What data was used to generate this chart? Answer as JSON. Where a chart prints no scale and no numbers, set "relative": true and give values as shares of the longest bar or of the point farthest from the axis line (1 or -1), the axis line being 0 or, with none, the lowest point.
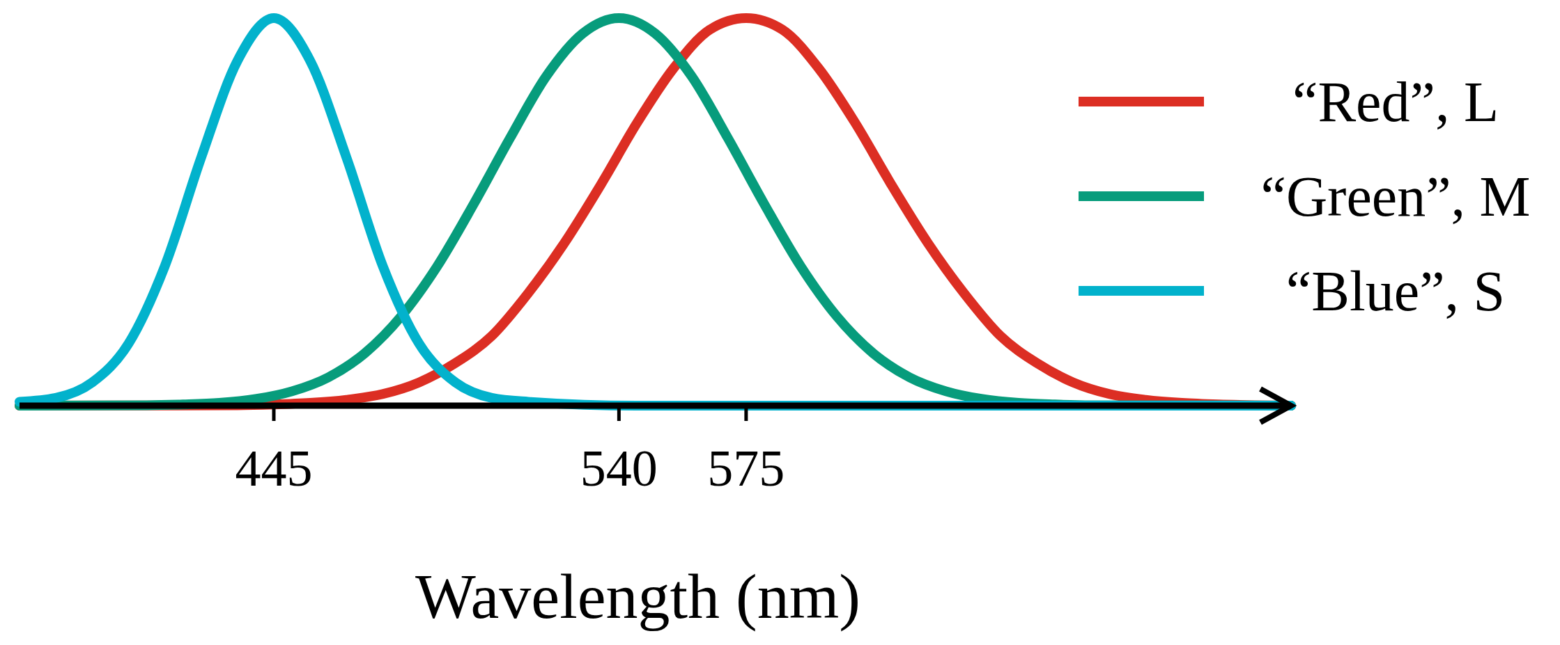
{
  "chart_data": {
    "type": "line",
    "xlabel": "Wavelength (nm)",
    "relative": true,
    "xlim": [
      375,
      725
    ],
    "xticks": [
      445,
      540,
      575
    ],
    "legend": "right",
    "grid": false,
    "marker": "none",
    "line_style": "solid",
    "series": [
      {
        "name": "“Red”, L",
        "color": "#dc2e23",
        "x": [
          375,
          435,
          445,
          455,
          465,
          475,
          485,
          495,
          505,
          515,
          525,
          535,
          545,
          555,
          565,
          575,
          585,
          595,
          605,
          615,
          625,
          635,
          645,
          655,
          665,
          675,
          685,
          695,
          705,
          715,
          725
        ],
        "values": [
          0,
          0.001,
          0.003,
          0.007,
          0.015,
          0.03,
          0.06,
          0.11,
          0.18,
          0.29,
          0.42,
          0.57,
          0.73,
          0.87,
          0.97,
          1,
          0.97,
          0.87,
          0.73,
          0.57,
          0.42,
          0.29,
          0.18,
          0.11,
          0.06,
          0.03,
          0.015,
          0.007,
          0.003,
          0.001,
          0
        ]
      },
      {
        "name": "“Green”, M",
        "color": "#079c7c",
        "x": [
          375,
          410,
          420,
          430,
          440,
          450,
          460,
          470,
          480,
          490,
          500,
          510,
          520,
          530,
          540,
          550,
          560,
          570,
          580,
          590,
          600,
          610,
          620,
          630,
          640,
          650,
          660,
          670,
          725
        ],
        "values": [
          0,
          0.001,
          0.003,
          0.007,
          0.017,
          0.037,
          0.073,
          0.135,
          0.23,
          0.36,
          0.52,
          0.69,
          0.85,
          0.96,
          1,
          0.96,
          0.85,
          0.69,
          0.52,
          0.36,
          0.23,
          0.135,
          0.073,
          0.037,
          0.017,
          0.007,
          0.003,
          0.001,
          0
        ]
      },
      {
        "name": "“Blue”, S",
        "color": "#02b2cc",
        "x": [
          375,
          385,
          395,
          405,
          415,
          425,
          435,
          445,
          455,
          465,
          475,
          485,
          495,
          505,
          515,
          545,
          725
        ],
        "values": [
          0.01,
          0.02,
          0.06,
          0.16,
          0.36,
          0.64,
          0.89,
          1,
          0.89,
          0.64,
          0.36,
          0.16,
          0.06,
          0.02,
          0.01,
          0,
          0
        ]
      }
    ]
  }
}
